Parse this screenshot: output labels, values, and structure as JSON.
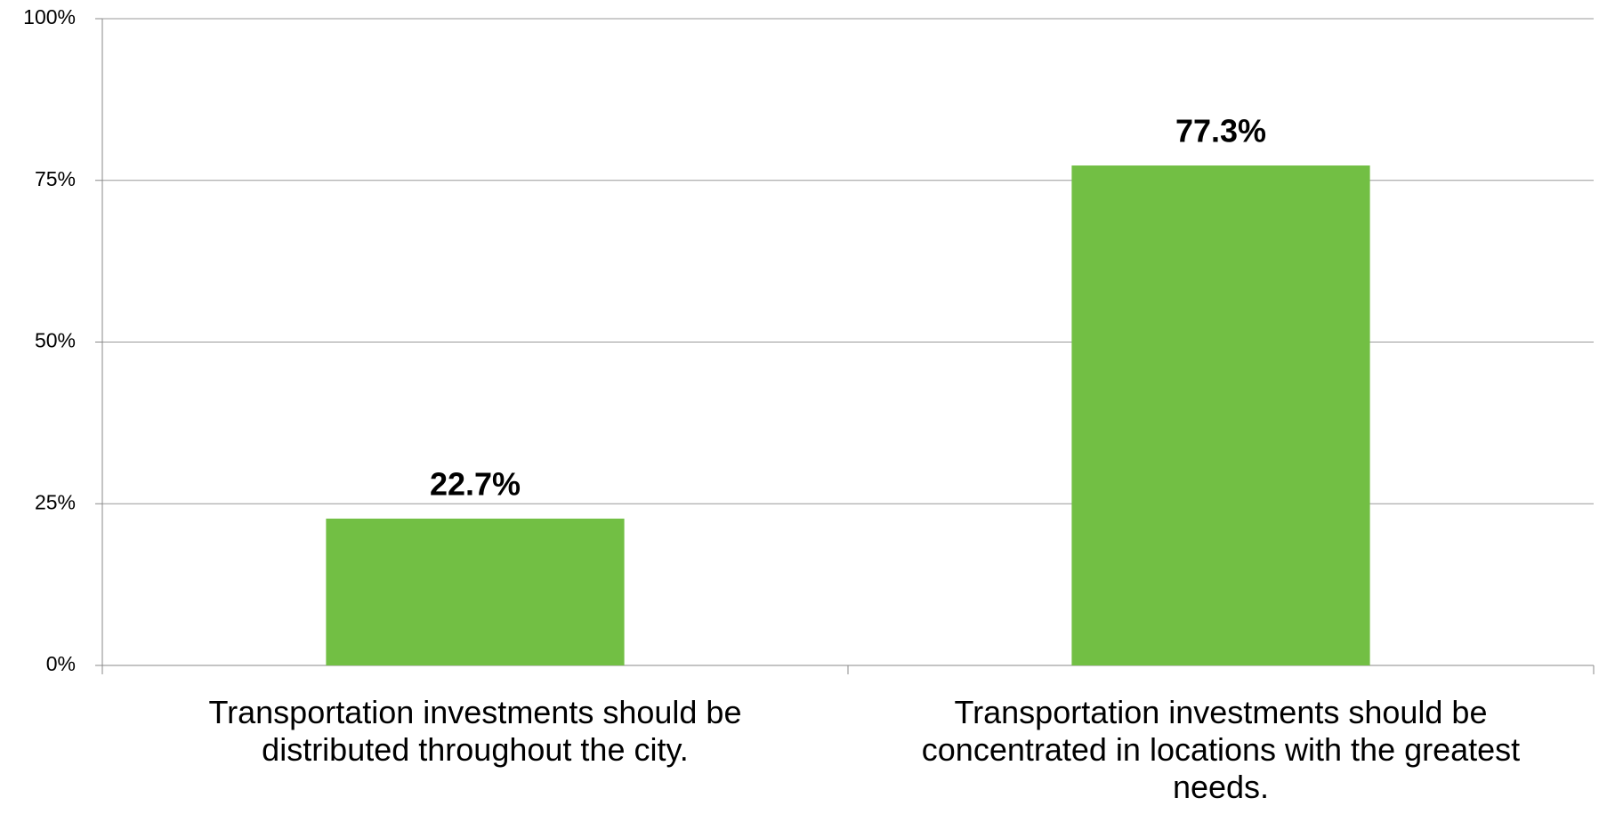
{
  "chart_data": {
    "type": "bar",
    "categories": [
      "Transportation investments should be distributed throughout the city.",
      "Transportation investments should be concentrated in locations with the greatest needs."
    ],
    "values": [
      22.7,
      77.3
    ],
    "value_labels": [
      "22.7%",
      "77.3%"
    ],
    "color": "#72bf44",
    "ylim": [
      0,
      100
    ],
    "yticks": [
      {
        "value": 0,
        "label": "0%"
      },
      {
        "value": 25,
        "label": "25%"
      },
      {
        "value": 50,
        "label": "50%"
      },
      {
        "value": 75,
        "label": "75%"
      },
      {
        "value": 100,
        "label": "100%"
      }
    ],
    "grid": true
  }
}
